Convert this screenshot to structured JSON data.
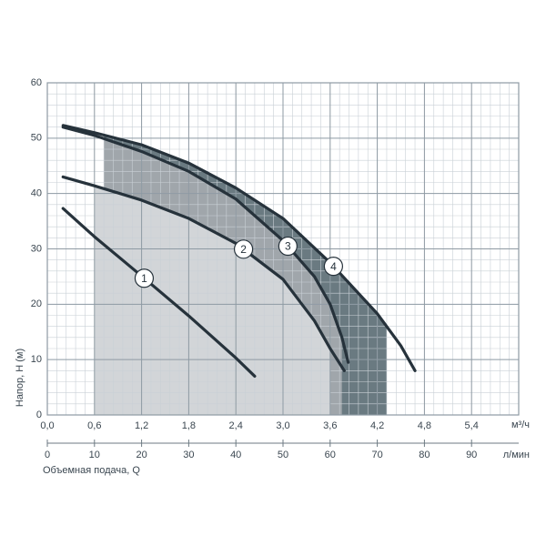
{
  "chart_data": {
    "type": "line",
    "x_label": "Объемная подача, Q",
    "y_label": "Напор, H (м)",
    "x_unit": "м³/ч",
    "x2_unit": "л/мин",
    "xlim": [
      0,
      6
    ],
    "ylim": [
      0,
      60
    ],
    "xticks": [
      {
        "value": 0,
        "label": "0,0"
      },
      {
        "value": 0.6,
        "label": "0,6"
      },
      {
        "value": 1.2,
        "label": "1,2"
      },
      {
        "value": 1.8,
        "label": "1,8"
      },
      {
        "value": 2.4,
        "label": "2,4"
      },
      {
        "value": 3.0,
        "label": "3,0"
      },
      {
        "value": 3.6,
        "label": "3,6"
      },
      {
        "value": 4.2,
        "label": "4,2"
      },
      {
        "value": 4.8,
        "label": "4,8"
      },
      {
        "value": 5.4,
        "label": "5,4"
      }
    ],
    "yticks": [
      0,
      10,
      20,
      30,
      40,
      50,
      60
    ],
    "x2lim": [
      0,
      100
    ],
    "x2ticks": [
      0,
      10,
      20,
      30,
      40,
      50,
      60,
      70,
      80,
      90
    ],
    "grid": true,
    "minor_grid": true,
    "line_color": "#26323b",
    "series": [
      {
        "name": "1",
        "x": [
          0.2,
          0.6,
          1.2,
          1.8,
          2.4,
          2.64
        ],
        "values": [
          37.3,
          32.2,
          25.1,
          17.9,
          10.3,
          7
        ]
      },
      {
        "name": "2",
        "x": [
          0.2,
          0.6,
          1.2,
          1.8,
          2.4,
          3.0,
          3.4,
          3.6,
          3.78
        ],
        "values": [
          43,
          41.4,
          38.8,
          35.5,
          31,
          24.5,
          17,
          12,
          8
        ],
        "range": [
          0.6,
          3.6
        ],
        "color": "#d2d5d8"
      },
      {
        "name": "3",
        "x": [
          0.2,
          0.6,
          1.2,
          1.8,
          2.4,
          3.0,
          3.4,
          3.6,
          3.75,
          3.83
        ],
        "values": [
          52,
          50.5,
          47.6,
          44,
          39,
          31.5,
          25,
          20,
          14,
          9.5
        ],
        "range": [
          0.72,
          3.75
        ],
        "color": "#a0a6ab"
      },
      {
        "name": "4",
        "x": [
          0.2,
          0.6,
          1.2,
          1.8,
          2.4,
          3.0,
          3.6,
          4.2,
          4.5,
          4.68
        ],
        "values": [
          52.3,
          51,
          48.8,
          45.5,
          41,
          35.5,
          27.5,
          18.3,
          12.5,
          8
        ],
        "range": [
          0.72,
          4.32
        ],
        "color": "#6a7a81"
      }
    ]
  }
}
